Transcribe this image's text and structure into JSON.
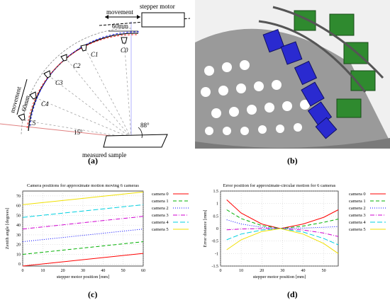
{
  "figure": {
    "captions": {
      "a": "(a)",
      "b": "(b)",
      "c": "(c)",
      "d": "(d)"
    }
  },
  "diagram": {
    "movement_top": "movement",
    "stepper_motor": "stepper motor",
    "dim_top": "60mm",
    "dim_side": "60mm",
    "movement_side": "movement",
    "angle_15": "15°",
    "angle_88": "88°",
    "measured_sample": "measured sample",
    "camera_labels": [
      "C0",
      "C1",
      "C2",
      "C3",
      "C4",
      "C5"
    ]
  },
  "photo": {
    "description_icon": "camera-dome-rig-photo"
  },
  "chart_data": [
    {
      "type": "line",
      "title": "Camera positions for approximate motion moving 6 cameras",
      "xlabel": "stepper motor position [mm]",
      "ylabel": "Zenith angle [degrees]",
      "xlim": [
        0,
        60
      ],
      "ylim": [
        -2,
        75
      ],
      "xticks": [
        0,
        10,
        20,
        30,
        40,
        50,
        60
      ],
      "yticks": [
        0,
        10,
        20,
        30,
        40,
        50,
        60,
        70
      ],
      "grid": true,
      "legend_position": "right",
      "series": [
        {
          "name": "camera 0",
          "color": "#ff0000",
          "dash": "",
          "x": [
            0,
            60
          ],
          "y": [
            -2,
            11
          ]
        },
        {
          "name": "camera 1",
          "color": "#00b000",
          "dash": "5,3",
          "x": [
            0,
            60
          ],
          "y": [
            10,
            23
          ]
        },
        {
          "name": "camera 2",
          "color": "#0000ff",
          "dash": "1,2",
          "x": [
            0,
            60
          ],
          "y": [
            23,
            36
          ]
        },
        {
          "name": "camera 3",
          "color": "#d000d0",
          "dash": "6,2,1,2",
          "x": [
            0,
            60
          ],
          "y": [
            36,
            49
          ]
        },
        {
          "name": "camera 4",
          "color": "#00d0e0",
          "dash": "7,3",
          "x": [
            0,
            60
          ],
          "y": [
            48,
            61
          ]
        },
        {
          "name": "camera 5",
          "color": "#f0e000",
          "dash": "",
          "x": [
            0,
            60
          ],
          "y": [
            61,
            74
          ]
        }
      ]
    },
    {
      "type": "line",
      "title": "Error position for approximate-circular motion for 6 cameras",
      "xlabel": "stepper motor position [mm]",
      "ylabel": "Error distance [mm]",
      "xlim": [
        0,
        57
      ],
      "ylim": [
        -1.5,
        1.5
      ],
      "xticks": [
        0,
        10,
        20,
        30,
        40,
        50
      ],
      "yticks": [
        -1.5,
        -1,
        -0.5,
        0,
        0.5,
        1,
        1.5
      ],
      "grid": true,
      "legend_position": "right",
      "series": [
        {
          "name": "camera 0",
          "color": "#ff0000",
          "dash": "",
          "x": [
            3,
            10,
            20,
            29,
            40,
            50,
            57
          ],
          "y": [
            1.15,
            0.62,
            0.18,
            0.0,
            0.18,
            0.45,
            0.75
          ]
        },
        {
          "name": "camera 1",
          "color": "#00b000",
          "dash": "5,3",
          "x": [
            3,
            10,
            20,
            29,
            40,
            50,
            57
          ],
          "y": [
            0.75,
            0.4,
            0.12,
            0.0,
            0.1,
            0.25,
            0.38
          ]
        },
        {
          "name": "camera 2",
          "color": "#0000ff",
          "dash": "1,2",
          "x": [
            3,
            10,
            20,
            29,
            40,
            50,
            57
          ],
          "y": [
            0.35,
            0.18,
            0.05,
            0.0,
            0.02,
            0.05,
            0.08
          ]
        },
        {
          "name": "camera 3",
          "color": "#d000d0",
          "dash": "6,2,1,2",
          "x": [
            3,
            10,
            20,
            29,
            40,
            50,
            57
          ],
          "y": [
            -0.05,
            -0.02,
            0.0,
            0.0,
            -0.06,
            -0.18,
            -0.32
          ]
        },
        {
          "name": "camera 4",
          "color": "#00d0e0",
          "dash": "7,3",
          "x": [
            3,
            10,
            20,
            29,
            40,
            50,
            57
          ],
          "y": [
            -0.45,
            -0.22,
            -0.06,
            0.0,
            -0.14,
            -0.4,
            -0.65
          ]
        },
        {
          "name": "camera 5",
          "color": "#f0e000",
          "dash": "",
          "x": [
            3,
            10,
            20,
            29,
            40,
            50,
            57
          ],
          "y": [
            -0.85,
            -0.45,
            -0.12,
            0.0,
            -0.22,
            -0.6,
            -1.0
          ]
        }
      ]
    }
  ]
}
